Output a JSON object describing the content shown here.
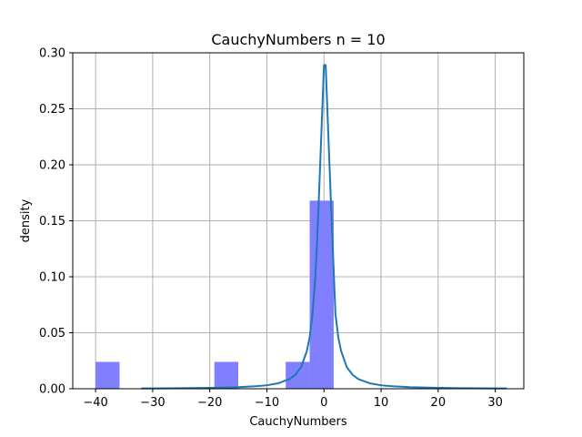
{
  "chart_data": {
    "type": "bar",
    "title": "CauchyNumbers n = 10",
    "xlabel": "CauchyNumbers",
    "ylabel": "density",
    "xlim": [
      -44,
      35
    ],
    "ylim": [
      0,
      0.3
    ],
    "grid": true,
    "x_ticks": [
      -40,
      -30,
      -20,
      -10,
      0,
      10,
      20,
      30
    ],
    "y_ticks": [
      0.0,
      0.05,
      0.1,
      0.15,
      0.2,
      0.25,
      0.3
    ],
    "x_tick_labels": [
      "−40",
      "−30",
      "−20",
      "−10",
      "0",
      "10",
      "20",
      "30"
    ],
    "y_tick_labels": [
      "0.00",
      "0.05",
      "0.10",
      "0.15",
      "0.20",
      "0.25",
      "0.30"
    ],
    "series": [
      {
        "kind": "histogram",
        "color": "#8080ff",
        "bins": [
          {
            "x0": -40,
            "x1": -35.8,
            "density": 0.024
          },
          {
            "x0": -19.2,
            "x1": -15.0,
            "density": 0.024
          },
          {
            "x0": -6.7,
            "x1": -2.5,
            "density": 0.024
          },
          {
            "x0": -2.5,
            "x1": 1.7,
            "density": 0.168
          }
        ]
      },
      {
        "kind": "line",
        "color": "#1f77b4",
        "x": [
          -32,
          -30,
          -25,
          -20,
          -15,
          -12,
          -10,
          -8,
          -6,
          -5,
          -4,
          -3,
          -2.5,
          -2,
          -1.5,
          -1.2,
          -0.9,
          -0.6,
          -0.3,
          0,
          0.3,
          0.6,
          0.9,
          1.2,
          1.5,
          2,
          2.5,
          3,
          4,
          5,
          6,
          8,
          10,
          12,
          15,
          20,
          25,
          30,
          32
        ],
        "y": [
          0.00031,
          0.00035,
          0.0005,
          0.00079,
          0.0014,
          0.0022,
          0.0031,
          0.0049,
          0.0087,
          0.0125,
          0.0193,
          0.0337,
          0.0461,
          0.0674,
          0.1008,
          0.1318,
          0.1693,
          0.2088,
          0.249,
          0.289,
          0.289,
          0.249,
          0.2088,
          0.1693,
          0.1318,
          0.0674,
          0.0461,
          0.0337,
          0.0193,
          0.0125,
          0.0087,
          0.0049,
          0.0031,
          0.0022,
          0.0014,
          0.00079,
          0.0005,
          0.00035,
          0.00031
        ]
      }
    ]
  }
}
